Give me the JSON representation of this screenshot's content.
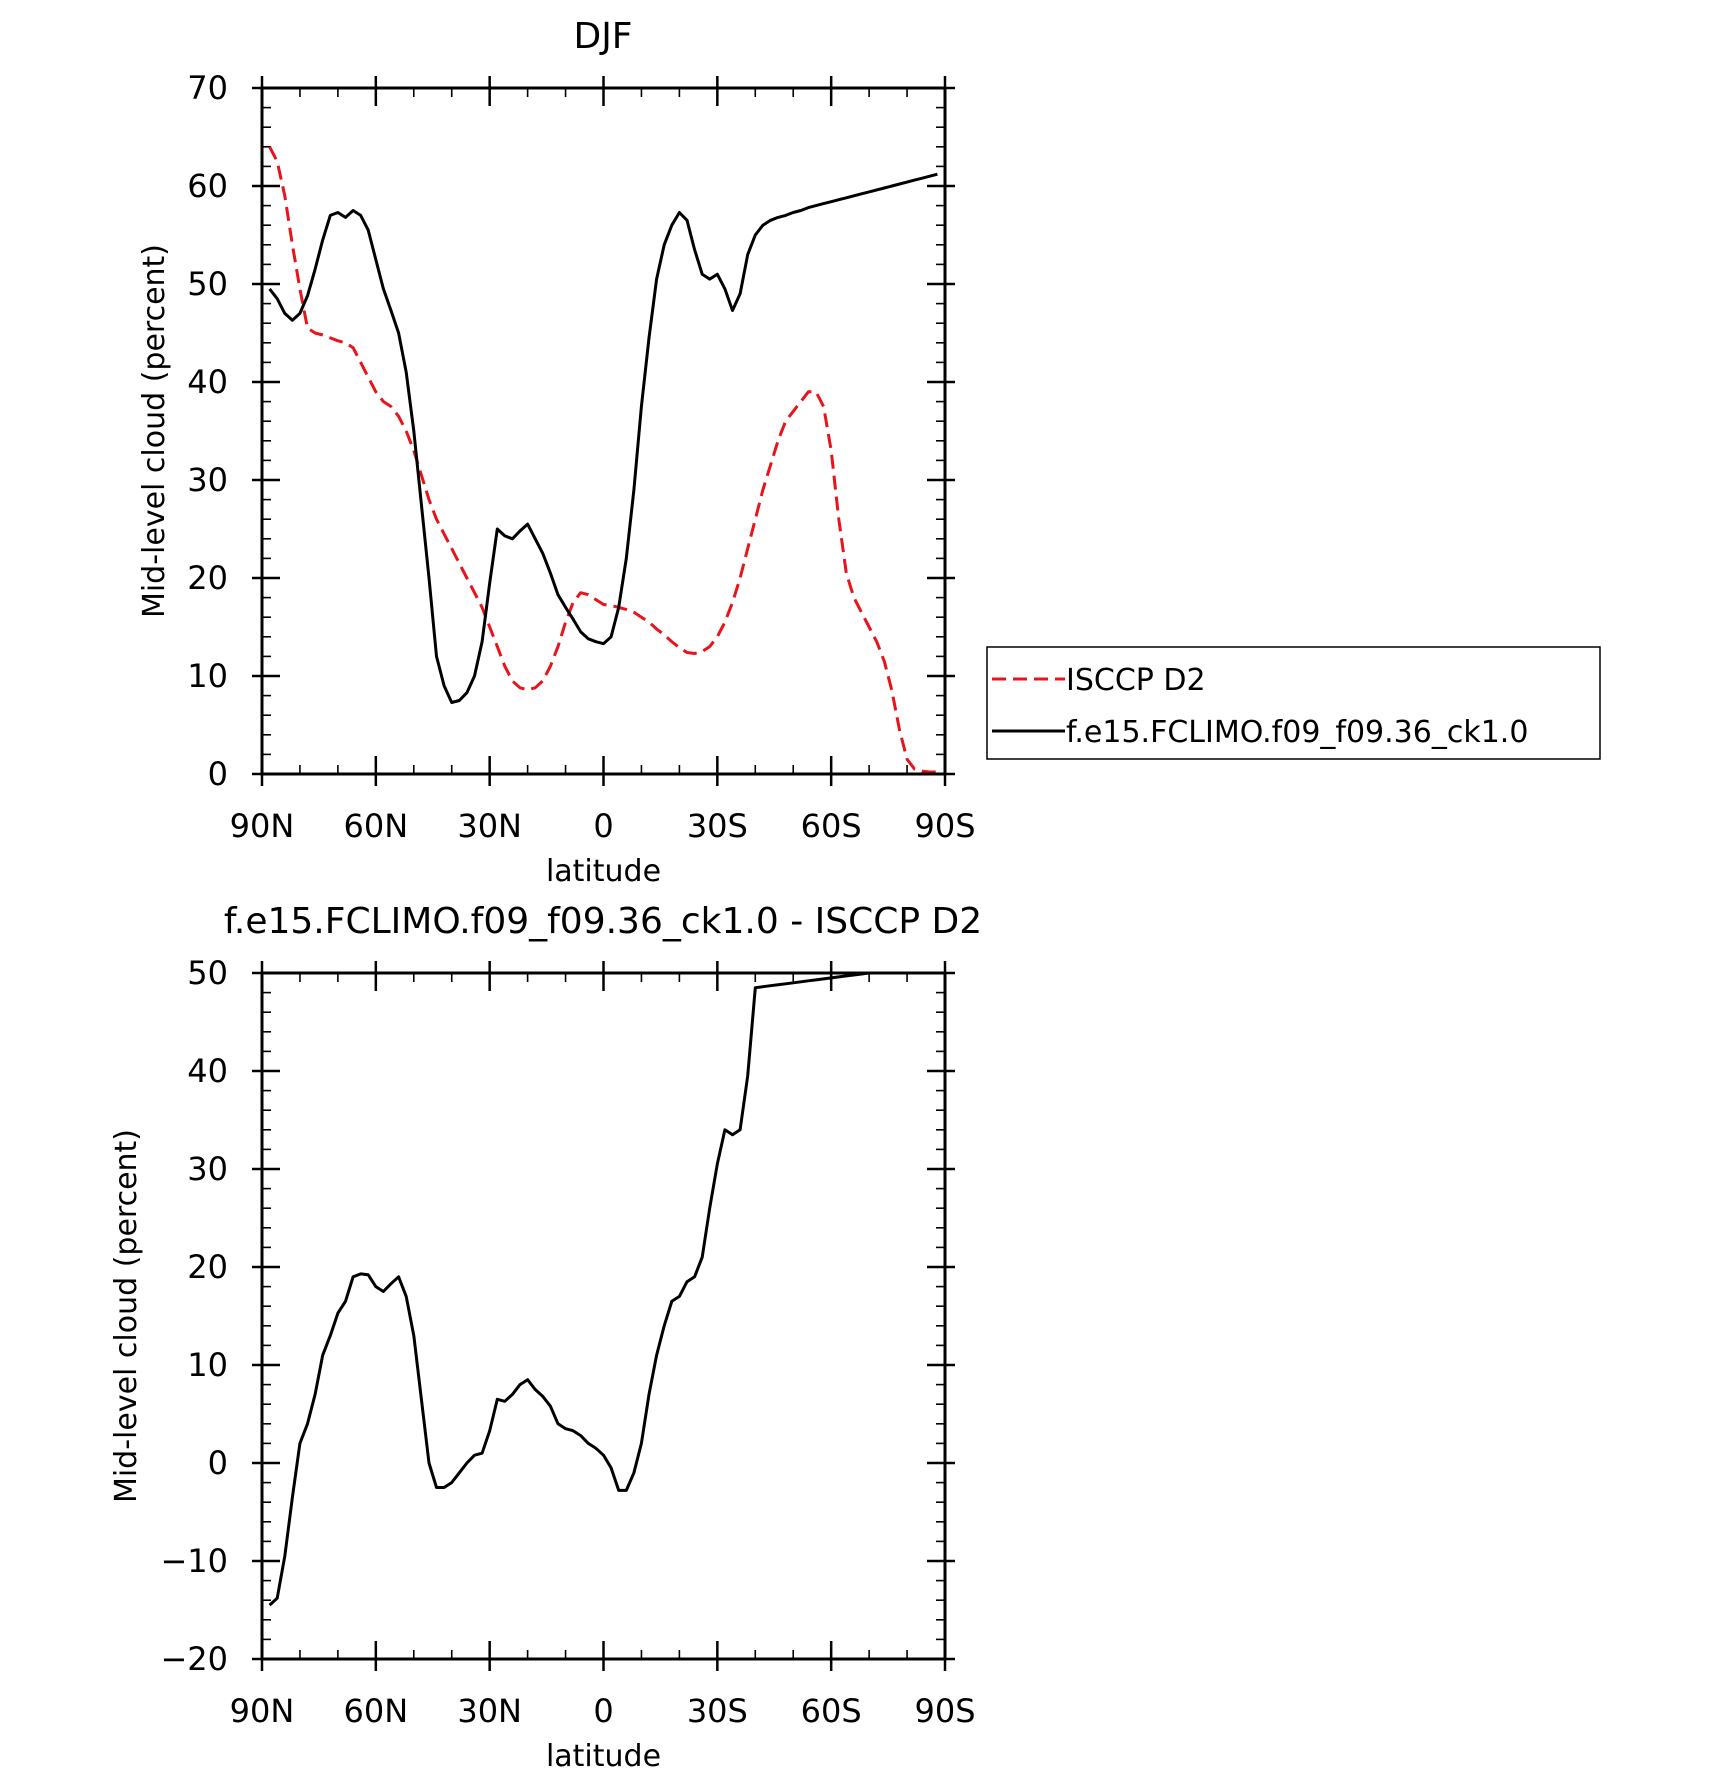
{
  "chart_data": [
    {
      "type": "line",
      "title": "DJF",
      "xlabel": "latitude",
      "ylabel": "Mid-level cloud (percent)",
      "xlim": [
        90,
        -90
      ],
      "ylim": [
        0,
        70
      ],
      "x_ticks": [
        90,
        60,
        30,
        0,
        -30,
        -60,
        -90
      ],
      "x_tick_labels": [
        "90N",
        "60N",
        "30N",
        "0",
        "30S",
        "60S",
        "90S"
      ],
      "y_ticks": [
        0,
        10,
        20,
        30,
        40,
        50,
        60,
        70
      ],
      "y_tick_labels": [
        "0",
        "10",
        "20",
        "30",
        "40",
        "50",
        "60",
        "70"
      ],
      "legend": {
        "position": "right"
      },
      "series": [
        {
          "name": "ISCCP D2",
          "color": "#e8141b",
          "dash": "dashed",
          "x": [
            88,
            86,
            84,
            82,
            80,
            78,
            76,
            74,
            72,
            70,
            68,
            66,
            64,
            62,
            60,
            58,
            56,
            54,
            52,
            50,
            48,
            46,
            44,
            42,
            40,
            38,
            36,
            34,
            32,
            30,
            28,
            26,
            24,
            22,
            20,
            18,
            16,
            14,
            12,
            10,
            8,
            6,
            4,
            2,
            0,
            -2,
            -4,
            -6,
            -8,
            -10,
            -12,
            -14,
            -16,
            -18,
            -20,
            -22,
            -24,
            -26,
            -28,
            -30,
            -32,
            -34,
            -36,
            -38,
            -40,
            -42,
            -44,
            -46,
            -48,
            -50,
            -52,
            -54,
            -56,
            -58,
            -60,
            -62,
            -64,
            -66,
            -68,
            -70,
            -72,
            -74,
            -76,
            -78,
            -80,
            -82,
            -84,
            -86,
            -88
          ],
          "values": [
            64.0,
            62.5,
            59.0,
            54.0,
            49.5,
            45.5,
            45.0,
            44.8,
            44.5,
            44.2,
            44.0,
            43.5,
            42.0,
            40.5,
            39.0,
            38.0,
            37.5,
            36.5,
            35.0,
            33.0,
            30.5,
            28.0,
            26.0,
            24.5,
            23.0,
            21.5,
            20.0,
            18.5,
            17.0,
            15.0,
            13.0,
            11.0,
            9.5,
            8.8,
            8.6,
            8.8,
            9.5,
            11.0,
            13.0,
            15.5,
            17.5,
            18.5,
            18.3,
            17.8,
            17.3,
            17.2,
            17.0,
            16.8,
            16.5,
            16.0,
            15.5,
            14.8,
            14.2,
            13.5,
            12.9,
            12.4,
            12.3,
            12.5,
            13.0,
            14.0,
            15.5,
            17.5,
            20.0,
            23.0,
            26.0,
            29.0,
            31.5,
            34.0,
            36.0,
            37.0,
            38.0,
            39.0,
            39.0,
            37.5,
            33.0,
            26.0,
            20.5,
            18.0,
            16.5,
            15.0,
            13.5,
            11.5,
            8.5,
            4.5,
            1.5,
            0.5,
            0.3,
            0.2,
            0.2
          ]
        },
        {
          "name": "f.e15.FCLIMO.f09_f09.36_ck1.0",
          "color": "#000000",
          "dash": "solid",
          "x": [
            88,
            86,
            84,
            82,
            80,
            78,
            76,
            74,
            72,
            70,
            68,
            66,
            64,
            62,
            60,
            58,
            56,
            54,
            52,
            50,
            48,
            46,
            44,
            42,
            40,
            38,
            36,
            34,
            32,
            30,
            28,
            26,
            24,
            22,
            20,
            18,
            16,
            14,
            12,
            10,
            8,
            6,
            4,
            2,
            0,
            -2,
            -4,
            -6,
            -8,
            -10,
            -12,
            -14,
            -16,
            -18,
            -20,
            -22,
            -24,
            -26,
            -28,
            -30,
            -32,
            -34,
            -36,
            -38,
            -40,
            -42,
            -44,
            -46,
            -48,
            -50,
            -52,
            -54,
            -56,
            -58,
            -60,
            -62,
            -64,
            -66,
            -68,
            -70,
            -72,
            -74,
            -76,
            -78,
            -80,
            -82,
            -84,
            -86,
            -88
          ],
          "values": [
            49.5,
            48.5,
            47.0,
            46.3,
            47.0,
            48.8,
            51.5,
            54.5,
            57.0,
            57.3,
            56.8,
            57.5,
            57.0,
            55.5,
            52.5,
            49.5,
            47.3,
            45.0,
            41.0,
            35.0,
            27.5,
            20.0,
            12.0,
            9.0,
            7.3,
            7.5,
            8.3,
            10.0,
            13.5,
            19.5,
            25.0,
            24.3,
            24.0,
            24.8,
            25.5,
            24.0,
            22.5,
            20.5,
            18.3,
            17.0,
            15.8,
            14.5,
            13.8,
            13.5,
            13.3,
            14.0,
            17.0,
            22.0,
            29.0,
            37.5,
            44.5,
            50.5,
            54.0,
            56.0,
            57.3,
            56.5,
            53.5,
            51.0,
            50.5,
            51.0,
            49.5,
            47.3,
            49.0,
            53.0,
            55.0,
            56.0,
            56.5,
            56.8,
            57.0,
            57.3,
            57.5,
            57.8,
            58.0,
            58.2,
            58.4,
            58.6,
            58.8,
            59.0,
            59.2,
            59.4,
            59.6,
            59.8,
            60.0,
            60.2,
            60.4,
            60.6,
            60.8,
            61.0,
            61.2
          ]
        }
      ]
    },
    {
      "type": "line",
      "title": "f.e15.FCLIMO.f09_f09.36_ck1.0 - ISCCP D2",
      "xlabel": "latitude",
      "ylabel": "Mid-level cloud (percent)",
      "xlim": [
        90,
        -90
      ],
      "ylim": [
        -20,
        50
      ],
      "x_ticks": [
        90,
        60,
        30,
        0,
        -30,
        -60,
        -90
      ],
      "x_tick_labels": [
        "90N",
        "60N",
        "30N",
        "0",
        "30S",
        "60S",
        "90S"
      ],
      "y_ticks": [
        -20,
        -10,
        0,
        10,
        20,
        30,
        40,
        50
      ],
      "y_tick_labels": [
        "−20",
        "−10",
        "0",
        "10",
        "20",
        "30",
        "40",
        "50"
      ],
      "series": [
        {
          "color": "#000000",
          "dash": "solid",
          "x": [
            88,
            86,
            84,
            82,
            80,
            78,
            76,
            74,
            72,
            70,
            68,
            66,
            64,
            62,
            60,
            58,
            56,
            54,
            52,
            50,
            48,
            46,
            44,
            42,
            40,
            38,
            36,
            34,
            32,
            30,
            28,
            26,
            24,
            22,
            20,
            18,
            16,
            14,
            12,
            10,
            8,
            6,
            4,
            2,
            0,
            -2,
            -4,
            -6,
            -8,
            -10,
            -12,
            -14,
            -16,
            -18,
            -20,
            -22,
            -24,
            -26,
            -28,
            -30,
            -32,
            -34,
            -36,
            -38,
            -40,
            -42,
            -44,
            -46,
            -48,
            -50,
            -52,
            -54,
            -56,
            -58,
            -60,
            -62,
            -64,
            -66,
            -68,
            -70,
            -72,
            -74,
            -76,
            -78,
            -80,
            -82,
            -84,
            -86,
            -88
          ],
          "values": [
            -14.5,
            -13.8,
            -9.5,
            -3.5,
            2.0,
            4.0,
            7.0,
            11.0,
            13.0,
            15.3,
            16.5,
            19.0,
            19.3,
            19.2,
            18.0,
            17.5,
            18.3,
            19.0,
            17.0,
            13.0,
            6.5,
            0.0,
            -2.5,
            -2.5,
            -2.0,
            -1.0,
            0.0,
            0.8,
            1.0,
            3.3,
            6.5,
            6.3,
            7.0,
            8.0,
            8.5,
            7.5,
            6.8,
            5.8,
            4.0,
            3.5,
            3.3,
            2.8,
            2.0,
            1.5,
            0.8,
            -0.5,
            -2.8,
            -2.8,
            -1.0,
            2.0,
            7.0,
            11.0,
            14.0,
            16.5,
            17.0,
            18.5,
            19.0,
            21.0,
            26.0,
            30.5,
            34.0,
            33.5,
            34.0,
            39.5,
            48.5,
            48.6,
            48.7,
            48.8,
            48.9,
            49.0,
            49.1,
            49.2,
            49.3,
            49.4,
            49.5,
            49.6,
            49.7,
            49.8,
            49.9,
            50.0,
            50.0,
            50.0,
            50.0,
            50.0,
            50.0,
            50.0,
            50.0,
            50.0,
            50.0
          ]
        }
      ]
    }
  ]
}
